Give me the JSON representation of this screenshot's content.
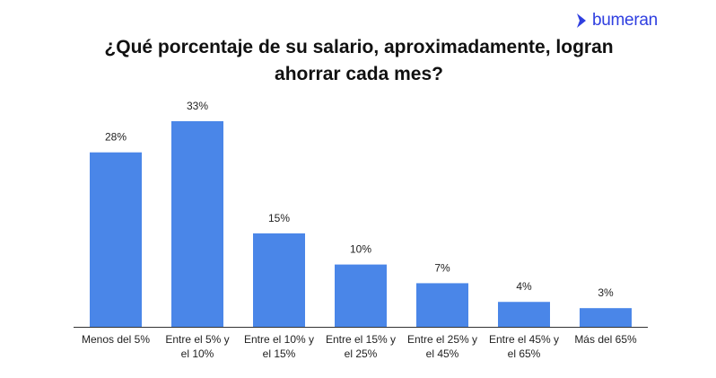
{
  "brand": {
    "name": "bumeran",
    "color": "#2f3fe0"
  },
  "chart_data": {
    "type": "bar",
    "title_lines": [
      "¿Qué porcentaje de su salario, aproximadamente, logran",
      "ahorrar cada mes?"
    ],
    "categories": [
      [
        "Menos del 5%"
      ],
      [
        "Entre el 5% y",
        "el 10%"
      ],
      [
        "Entre el 10% y",
        "el 15%"
      ],
      [
        "Entre el 15% y",
        "el 25%"
      ],
      [
        "Entre el 25% y",
        "el 45%"
      ],
      [
        "Entre el 45% y",
        "el 65%"
      ],
      [
        "Más del 65%"
      ]
    ],
    "values": [
      28,
      33,
      15,
      10,
      7,
      4,
      3
    ],
    "value_labels": [
      "28%",
      "33%",
      "15%",
      "10%",
      "7%",
      "4%",
      "3%"
    ],
    "bar_color": "#4a86e8",
    "ylim": [
      0,
      33
    ],
    "grid": false,
    "legend": "none"
  }
}
